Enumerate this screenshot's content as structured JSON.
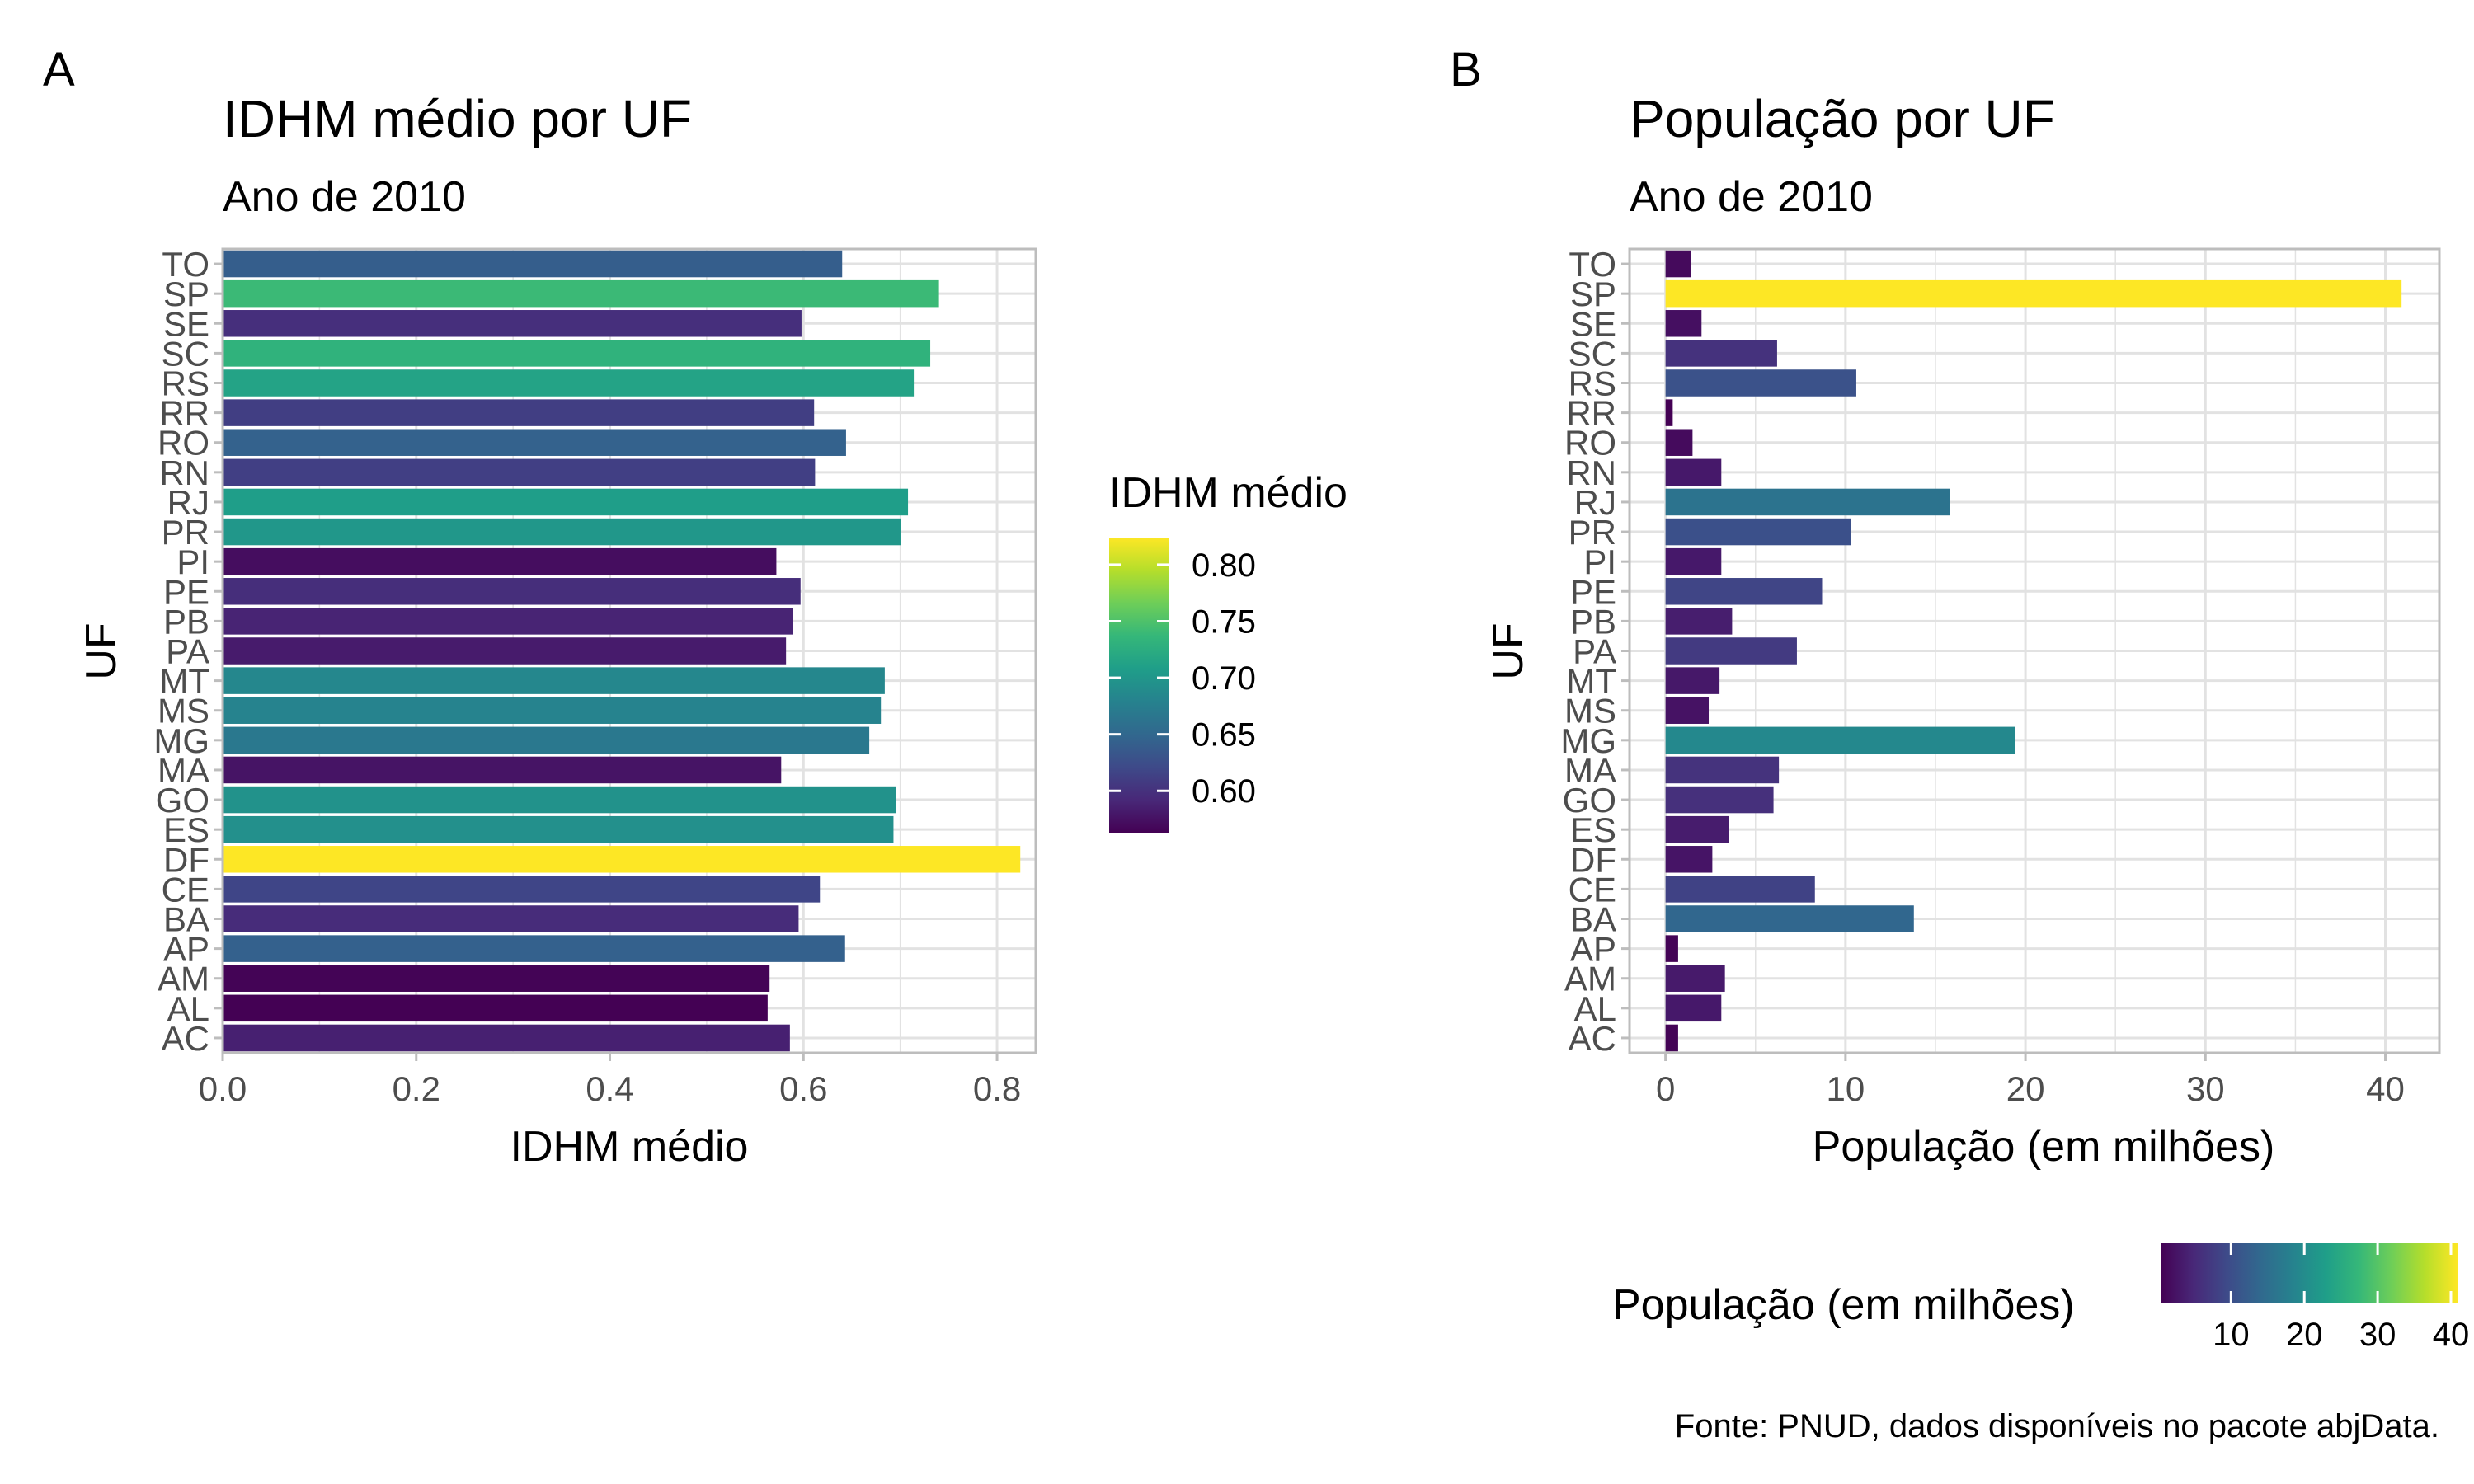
{
  "panels": [
    {
      "tag": "A",
      "title": "IDHM médio por UF",
      "subtitle": "Ano de 2010",
      "chart_data": {
        "type": "bar",
        "orientation": "horizontal",
        "title": "IDHM médio por UF",
        "subtitle": "Ano de 2010",
        "xlabel": "IDHM médio",
        "ylabel": "UF",
        "xlim": [
          0,
          0.84
        ],
        "xticks": [
          "0.0",
          "0.2",
          "0.4",
          "0.6",
          "0.8"
        ],
        "xtick_values": [
          0,
          0.2,
          0.4,
          0.6,
          0.8
        ],
        "grid": true,
        "categories": [
          "AC",
          "AL",
          "AM",
          "AP",
          "BA",
          "CE",
          "DF",
          "ES",
          "GO",
          "MA",
          "MG",
          "MS",
          "MT",
          "PA",
          "PB",
          "PE",
          "PI",
          "PR",
          "RJ",
          "RN",
          "RO",
          "RR",
          "RS",
          "SC",
          "SE",
          "SP",
          "TO"
        ],
        "values": [
          0.586,
          0.563,
          0.565,
          0.643,
          0.595,
          0.617,
          0.824,
          0.693,
          0.696,
          0.577,
          0.668,
          0.68,
          0.684,
          0.582,
          0.589,
          0.597,
          0.572,
          0.701,
          0.708,
          0.612,
          0.644,
          0.611,
          0.714,
          0.731,
          0.598,
          0.74,
          0.64
        ],
        "color_scale": {
          "title": "IDHM médio",
          "min": 0.563,
          "max": 0.824,
          "ticks": [
            "0.60",
            "0.65",
            "0.70",
            "0.75",
            "0.80"
          ],
          "tick_values": [
            0.6,
            0.65,
            0.7,
            0.75,
            0.8
          ],
          "palette": "viridis",
          "legend_position": "right"
        }
      }
    },
    {
      "tag": "B",
      "title": "População por UF",
      "subtitle": "Ano de 2010",
      "caption": "Fonte: PNUD, dados disponíveis no pacote abjData.",
      "chart_data": {
        "type": "bar",
        "orientation": "horizontal",
        "title": "População por UF",
        "subtitle": "Ano de 2010",
        "xlabel": "População (em milhões)",
        "ylabel": "UF",
        "xlim": [
          -2,
          43
        ],
        "xticks": [
          "0",
          "10",
          "20",
          "30",
          "40"
        ],
        "xtick_values": [
          0,
          10,
          20,
          30,
          40
        ],
        "grid": true,
        "categories": [
          "AC",
          "AL",
          "AM",
          "AP",
          "BA",
          "CE",
          "DF",
          "ES",
          "GO",
          "MA",
          "MG",
          "MS",
          "MT",
          "PA",
          "PB",
          "PE",
          "PI",
          "PR",
          "RJ",
          "RN",
          "RO",
          "RR",
          "RS",
          "SC",
          "SE",
          "SP",
          "TO"
        ],
        "values": [
          0.7,
          3.1,
          3.3,
          0.7,
          13.8,
          8.3,
          2.6,
          3.5,
          6.0,
          6.3,
          19.4,
          2.4,
          3.0,
          7.3,
          3.7,
          8.7,
          3.1,
          10.3,
          15.8,
          3.1,
          1.5,
          0.4,
          10.6,
          6.2,
          2.0,
          40.9,
          1.4
        ],
        "color_scale": {
          "title": "População (em milhões)",
          "min": 0.4,
          "max": 40.9,
          "ticks": [
            "10",
            "20",
            "30",
            "40"
          ],
          "tick_values": [
            10,
            20,
            30,
            40
          ],
          "palette": "viridis",
          "legend_position": "bottom"
        }
      }
    }
  ],
  "colors": {
    "panel_border": "#bdbdbd",
    "grid": "#e2e2e2",
    "axis_text": "#4d4d4d",
    "viridis": [
      "#440154",
      "#482878",
      "#3e4a89",
      "#31688e",
      "#26828e",
      "#1f9e89",
      "#35b779",
      "#6ece58",
      "#b5de2b",
      "#fde725"
    ]
  }
}
